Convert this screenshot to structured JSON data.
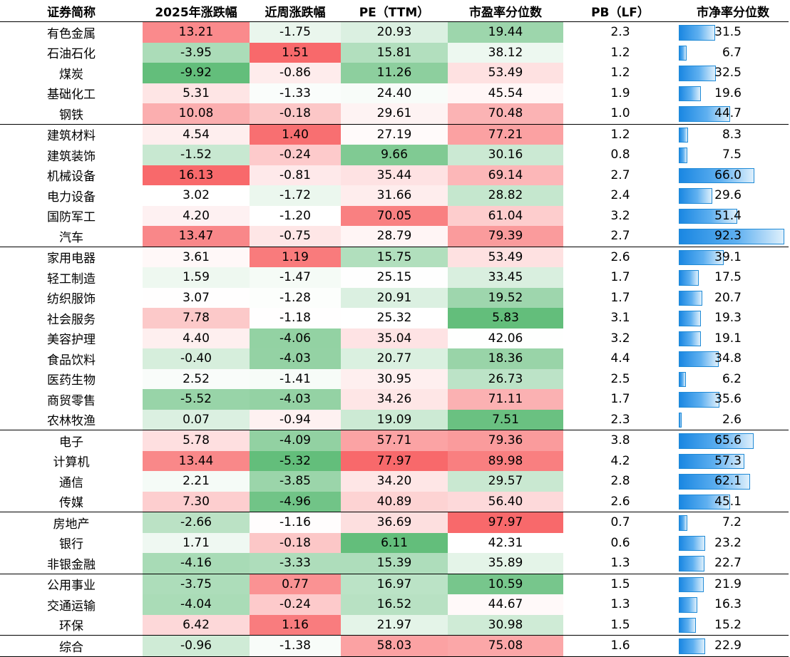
{
  "headers": [
    "证券简称",
    "2025年涨跌幅",
    "近周涨跌幅",
    "PE（TTM）",
    "市盈率分位数",
    "PB（LF）",
    "市净率分位数"
  ],
  "rows": [
    {
      "name": "有色金属",
      "ytd": "13.21",
      "wk": "-1.75",
      "pe": "20.93",
      "pep": "19.44",
      "pb": "2.3",
      "pbp": "31.5"
    },
    {
      "name": "石油石化",
      "ytd": "-3.95",
      "wk": "1.51",
      "pe": "15.81",
      "pep": "38.12",
      "pb": "1.2",
      "pbp": "6.7"
    },
    {
      "name": "煤炭",
      "ytd": "-9.92",
      "wk": "-0.86",
      "pe": "11.26",
      "pep": "53.49",
      "pb": "1.2",
      "pbp": "32.5"
    },
    {
      "name": "基础化工",
      "ytd": "5.31",
      "wk": "-1.33",
      "pe": "24.40",
      "pep": "45.54",
      "pb": "1.9",
      "pbp": "19.6"
    },
    {
      "name": "钢铁",
      "ytd": "10.08",
      "wk": "-0.18",
      "pe": "29.61",
      "pep": "70.48",
      "pb": "1.0",
      "pbp": "44.7",
      "sep": true
    },
    {
      "name": "建筑材料",
      "ytd": "4.54",
      "wk": "1.40",
      "pe": "27.19",
      "pep": "77.21",
      "pb": "1.2",
      "pbp": "8.3"
    },
    {
      "name": "建筑装饰",
      "ytd": "-1.52",
      "wk": "-0.24",
      "pe": "9.66",
      "pep": "30.16",
      "pb": "0.8",
      "pbp": "7.5"
    },
    {
      "name": "机械设备",
      "ytd": "16.13",
      "wk": "-0.81",
      "pe": "35.44",
      "pep": "69.14",
      "pb": "2.7",
      "pbp": "66.0"
    },
    {
      "name": "电力设备",
      "ytd": "3.02",
      "wk": "-1.72",
      "pe": "31.66",
      "pep": "28.82",
      "pb": "2.4",
      "pbp": "29.6"
    },
    {
      "name": "国防军工",
      "ytd": "4.20",
      "wk": "-1.20",
      "pe": "70.05",
      "pep": "61.04",
      "pb": "3.2",
      "pbp": "51.4"
    },
    {
      "name": "汽车",
      "ytd": "13.47",
      "wk": "-0.75",
      "pe": "28.79",
      "pep": "79.39",
      "pb": "2.7",
      "pbp": "92.3",
      "sep": true
    },
    {
      "name": "家用电器",
      "ytd": "3.61",
      "wk": "1.19",
      "pe": "15.75",
      "pep": "53.49",
      "pb": "2.6",
      "pbp": "39.1"
    },
    {
      "name": "轻工制造",
      "ytd": "1.59",
      "wk": "-1.47",
      "pe": "25.15",
      "pep": "33.45",
      "pb": "1.7",
      "pbp": "17.5"
    },
    {
      "name": "纺织服饰",
      "ytd": "3.07",
      "wk": "-1.28",
      "pe": "20.91",
      "pep": "19.52",
      "pb": "1.7",
      "pbp": "20.7"
    },
    {
      "name": "社会服务",
      "ytd": "7.78",
      "wk": "-1.18",
      "pe": "25.32",
      "pep": "5.83",
      "pb": "3.1",
      "pbp": "19.3"
    },
    {
      "name": "美容护理",
      "ytd": "4.40",
      "wk": "-4.06",
      "pe": "35.04",
      "pep": "42.06",
      "pb": "3.2",
      "pbp": "19.1"
    },
    {
      "name": "食品饮料",
      "ytd": "-0.40",
      "wk": "-4.03",
      "pe": "20.77",
      "pep": "18.36",
      "pb": "4.4",
      "pbp": "34.8"
    },
    {
      "name": "医药生物",
      "ytd": "2.52",
      "wk": "-1.41",
      "pe": "30.95",
      "pep": "26.73",
      "pb": "2.5",
      "pbp": "6.2"
    },
    {
      "name": "商贸零售",
      "ytd": "-5.52",
      "wk": "-4.03",
      "pe": "34.26",
      "pep": "71.11",
      "pb": "1.7",
      "pbp": "35.6"
    },
    {
      "name": "农林牧渔",
      "ytd": "0.07",
      "wk": "-0.94",
      "pe": "19.09",
      "pep": "7.51",
      "pb": "2.3",
      "pbp": "2.6",
      "sep": true
    },
    {
      "name": "电子",
      "ytd": "5.78",
      "wk": "-4.09",
      "pe": "57.71",
      "pep": "79.36",
      "pb": "3.8",
      "pbp": "65.6"
    },
    {
      "name": "计算机",
      "ytd": "13.44",
      "wk": "-5.32",
      "pe": "77.97",
      "pep": "89.98",
      "pb": "4.2",
      "pbp": "57.3"
    },
    {
      "name": "通信",
      "ytd": "2.21",
      "wk": "-3.85",
      "pe": "34.20",
      "pep": "29.57",
      "pb": "2.8",
      "pbp": "62.1"
    },
    {
      "name": "传媒",
      "ytd": "7.30",
      "wk": "-4.96",
      "pe": "40.89",
      "pep": "56.40",
      "pb": "2.6",
      "pbp": "45.1",
      "sep": true
    },
    {
      "name": "房地产",
      "ytd": "-2.66",
      "wk": "-1.16",
      "pe": "36.69",
      "pep": "97.97",
      "pb": "0.7",
      "pbp": "7.2"
    },
    {
      "name": "银行",
      "ytd": "1.71",
      "wk": "-0.18",
      "pe": "6.11",
      "pep": "42.31",
      "pb": "0.6",
      "pbp": "23.2"
    },
    {
      "name": "非银金融",
      "ytd": "-4.16",
      "wk": "-3.33",
      "pe": "15.39",
      "pep": "35.89",
      "pb": "1.3",
      "pbp": "22.7",
      "sep": true
    },
    {
      "name": "公用事业",
      "ytd": "-3.75",
      "wk": "0.77",
      "pe": "16.97",
      "pep": "10.59",
      "pb": "1.5",
      "pbp": "21.9"
    },
    {
      "name": "交通运输",
      "ytd": "-4.04",
      "wk": "-0.24",
      "pe": "16.52",
      "pep": "44.67",
      "pb": "1.3",
      "pbp": "16.3"
    },
    {
      "name": "环保",
      "ytd": "6.42",
      "wk": "1.16",
      "pe": "21.97",
      "pep": "30.98",
      "pb": "1.5",
      "pbp": "15.2",
      "sep": true
    },
    {
      "name": "综合",
      "ytd": "-0.96",
      "wk": "-1.38",
      "pe": "58.03",
      "pep": "75.08",
      "pb": "1.6",
      "pbp": "22.9",
      "last": true
    }
  ],
  "colors": {
    "high": "#f8696b",
    "mid": "#ffffff",
    "low": "#63be7b",
    "bar": "#1a87e2"
  }
}
